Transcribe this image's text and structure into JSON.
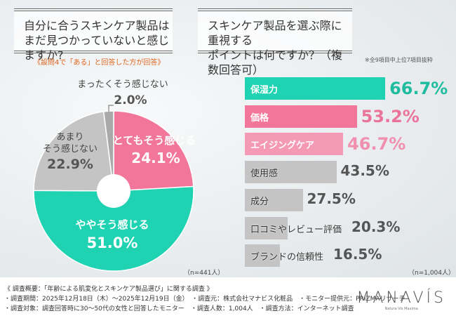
{
  "left": {
    "question": [
      "自分に合うスキンケア製品は",
      "まだ見つかっていないと感じますか?"
    ],
    "condition": "《設問4で「ある」と回答した方が回答》",
    "n": "（n=441人）"
  },
  "right": {
    "question": [
      "スキンケア製品を選ぶ際に重視する",
      "ポイントは何ですか？（複数回答可）"
    ],
    "note": "※全9項目中上位7項目抜粋",
    "n": "（n=1,004人）"
  },
  "colors": {
    "teal": "#1ed2b2",
    "pink": "#f2759a",
    "light_pink": "#f59ab6",
    "gray": "#c4c4c4",
    "dark_gray": "#a9a9a9",
    "orange": "#e0651f"
  },
  "chart_data": [
    {
      "type": "pie",
      "start": "top",
      "direction": "clockwise",
      "slices": [
        {
          "label": "とてもそう感じる",
          "value": 24.1,
          "display": "24.1%",
          "color": "#f2759a"
        },
        {
          "label": "ややそう感じる",
          "value": 51.0,
          "display": "51.0%",
          "color": "#1ed2b2"
        },
        {
          "label": "あまりそう感じない",
          "value": 22.9,
          "display": "22.9%",
          "color": "#c4c4c4"
        },
        {
          "label": "まったくそう感じない",
          "value": 2.0,
          "display": "2.0%",
          "color": "#a9a9a9"
        }
      ]
    },
    {
      "type": "bar",
      "orientation": "horizontal",
      "categories": [
        "保湿力",
        "価格",
        "エイジングケア",
        "使用感",
        "成分",
        "口コミやレビュー評価",
        "ブランドの信頼性"
      ],
      "values": [
        66.7,
        53.2,
        46.7,
        43.5,
        27.5,
        20.3,
        16.5
      ],
      "display": [
        "66.7%",
        "53.2%",
        "46.7%",
        "43.5%",
        "27.5%",
        "20.3%",
        "16.5%"
      ],
      "colors": [
        "#1ed2b2",
        "#f2759a",
        "#f59ab6",
        "#c4c4c4",
        "#c4c4c4",
        "#c4c4c4",
        "#c4c4c4"
      ],
      "value_colors": [
        "#1fbc9f",
        "#ea7499",
        "#f08fae",
        "#555555",
        "#555555",
        "#555555",
        "#555555"
      ]
    }
  ],
  "footer": {
    "lines": [
      "《 調査概要：「年齢による肌変化とスキンケア製品選び」に関する調査 》",
      "・調査期間：2025年12月18日（木）～2025年12月19日（金）　・調査元：株式会社マナビス化粧品　・モニター提供元：PRIZMAリサーチ",
      "・調査対象：調査回答時に30～50代の女性と回答したモニター　・調査人数：1,004人　・調査方法：インターネット調査"
    ]
  },
  "logo": {
    "name": "MANAVÍS",
    "tagline": "Natura Vis Maxima"
  }
}
